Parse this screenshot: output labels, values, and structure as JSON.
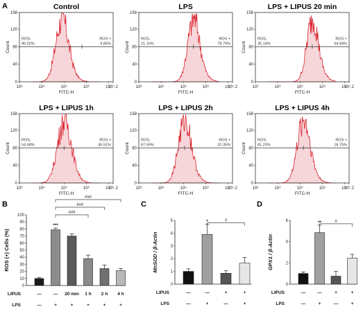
{
  "panel_labels": {
    "a": "A",
    "b": "B",
    "c": "C",
    "d": "D"
  },
  "flow": {
    "x_label": "FITC-H",
    "y_label": "Count",
    "x_ticks": [
      "10³",
      "10⁴",
      "10⁵",
      "10⁶",
      "10⁷",
      "10⁷.2"
    ],
    "y_ticks": [
      "0",
      "40",
      "80",
      "120",
      "158"
    ]
  },
  "chart_data": [
    {
      "type": "histogram",
      "title": "Control",
      "ros_neg_label": "ROS-",
      "ros_neg": "90.02%",
      "ros_pos_label": "ROS +",
      "ros_pos": "9.85%",
      "peak_log10": 4.9,
      "width": 0.28,
      "ylim": [
        0,
        158
      ]
    },
    {
      "type": "histogram",
      "title": "LPS",
      "ros_neg_label": "ROS-",
      "ros_neg": "21.16%",
      "ros_pos_label": "ROS +",
      "ros_pos": "78.79%",
      "peak_log10": 5.45,
      "width": 0.26,
      "ylim": [
        0,
        158
      ]
    },
    {
      "type": "histogram",
      "title": "LPS + LIPUS 20 min",
      "ros_neg_label": "ROS-",
      "ros_neg": "35.14%",
      "ros_pos_label": "ROS +",
      "ros_pos": "64.84%",
      "peak_log10": 5.55,
      "width": 0.25,
      "ylim": [
        0,
        158
      ]
    },
    {
      "type": "histogram",
      "title": "LPS + LIPUS 1h",
      "ros_neg_label": "ROS-",
      "ros_neg": "54.48%",
      "ros_pos_label": "ROS +",
      "ros_pos": "45.51%",
      "peak_log10": 5.0,
      "width": 0.3,
      "ylim": [
        0,
        158
      ]
    },
    {
      "type": "histogram",
      "title": "LPS + LIPUS 2h",
      "ros_neg_label": "ROS-",
      "ros_neg": "67.59%",
      "ros_pos_label": "ROS +",
      "ros_pos": "32.35%",
      "peak_log10": 5.05,
      "width": 0.28,
      "ylim": [
        0,
        158
      ]
    },
    {
      "type": "histogram",
      "title": "LPS + LIPUS 4h",
      "ros_neg_label": "ROS-",
      "ros_neg": "81.20%",
      "ros_pos_label": "ROS +",
      "ros_pos": "18.75%",
      "peak_log10": 5.15,
      "width": 0.28,
      "ylim": [
        0,
        158
      ]
    },
    {
      "type": "bar",
      "ylabel": "ROS (+) Cells (%)",
      "ylim": [
        0,
        100
      ],
      "yticks": [
        "0",
        "10",
        "20",
        "30",
        "40",
        "50",
        "60",
        "70",
        "80",
        "90",
        "100"
      ],
      "values": [
        9.9,
        78.8,
        70,
        38,
        24,
        21
      ],
      "errors": [
        1.5,
        2.5,
        3,
        5,
        5,
        3
      ],
      "colors": [
        "#1a1a1a",
        "#8c8c8c",
        "#5a5a5a",
        "#8a8a8a",
        "#707070",
        "#b8b8b8"
      ],
      "row_lipus_label": "LIPUS",
      "row_lipus": [
        "—",
        "—",
        "20 min",
        "1 h",
        "2 h",
        "4 h"
      ],
      "row_lps_label": "LPS",
      "row_lps": [
        "—",
        "+",
        "+",
        "+",
        "+",
        "+"
      ],
      "stars": [
        {
          "bar": 1,
          "text": "***"
        }
      ],
      "brackets": [
        {
          "from": 1,
          "to": 3,
          "text": "###"
        },
        {
          "from": 1,
          "to": 4,
          "text": "###"
        },
        {
          "from": 1,
          "to": 5,
          "text": "###"
        }
      ]
    },
    {
      "type": "bar",
      "ylabel": "MnSOD / β-Actin",
      "ylim": [
        0,
        5
      ],
      "yticks": [
        "0",
        "1",
        "2",
        "3",
        "4",
        "5"
      ],
      "values": [
        1.0,
        3.9,
        0.85,
        1.65
      ],
      "errors": [
        0.2,
        0.8,
        0.2,
        0.45
      ],
      "colors": [
        "#111111",
        "#a0a0a0",
        "#555555",
        "#e6e6e6"
      ],
      "row_lipus_label": "LIPUS",
      "row_lipus": [
        "—",
        "—",
        "+",
        "+"
      ],
      "row_lps_label": "LPS",
      "row_lps": [
        "—",
        "+",
        "—",
        "+"
      ],
      "stars": [
        {
          "bar": 1,
          "text": "*"
        }
      ],
      "brackets": [
        {
          "from": 1,
          "to": 3,
          "text": "#"
        }
      ]
    },
    {
      "type": "bar",
      "ylabel": "GPX1 / β-Actin",
      "ylim": [
        0,
        6
      ],
      "yticks": [
        "0",
        "2",
        "4",
        "6"
      ],
      "values": [
        1.0,
        4.85,
        0.75,
        2.45
      ],
      "errors": [
        0.15,
        0.7,
        0.45,
        0.35
      ],
      "colors": [
        "#111111",
        "#a0a0a0",
        "#555555",
        "#e6e6e6"
      ],
      "row_lipus_label": "LIPUS",
      "row_lipus": [
        "—",
        "—",
        "+",
        "+"
      ],
      "row_lps_label": "LPS",
      "row_lps": [
        "—",
        "+",
        "—",
        "+"
      ],
      "stars": [
        {
          "bar": 1,
          "text": "**"
        }
      ],
      "brackets": [
        {
          "from": 1,
          "to": 3,
          "text": "#"
        }
      ]
    }
  ]
}
